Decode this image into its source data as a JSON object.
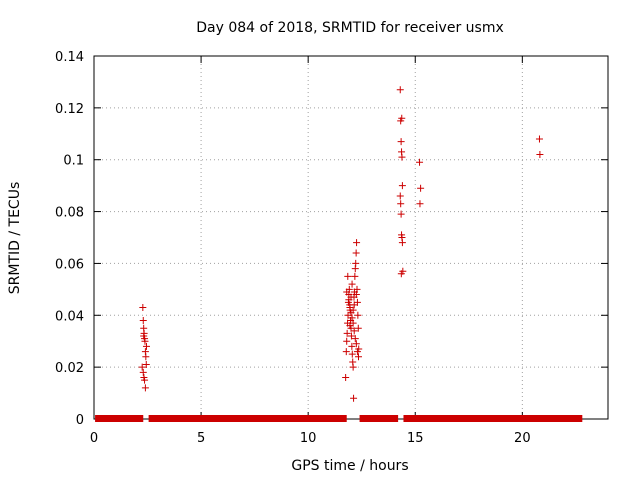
{
  "chart_data": {
    "type": "scatter",
    "title": "Day 084 of 2018, SRMTID for receiver usmx",
    "xlabel": "GPS time / hours",
    "ylabel": "SRMTID / TECUs",
    "xlim": [
      0,
      24
    ],
    "ylim": [
      0,
      0.14
    ],
    "xticks": [
      0,
      5,
      10,
      15,
      20
    ],
    "xtick_labels": [
      "0",
      "5",
      "10",
      "15",
      "20"
    ],
    "yticks": [
      0,
      0.02,
      0.04,
      0.06,
      0.08,
      0.1,
      0.12,
      0.14
    ],
    "ytick_labels": [
      "0",
      "0.02",
      "0.04",
      "0.06",
      "0.08",
      "0.1",
      "0.12",
      "0.14"
    ],
    "grid": true,
    "marker_color": "#cc0000",
    "marker": "+",
    "baseline_segments": [
      [
        0.05,
        2.3
      ],
      [
        2.55,
        11.8
      ],
      [
        12.4,
        14.2
      ],
      [
        14.45,
        22.8
      ]
    ],
    "series": [
      {
        "name": "SRMTID",
        "x": [
          2.28,
          2.3,
          2.32,
          2.34,
          2.36,
          2.38,
          2.4,
          2.42,
          2.44,
          2.25,
          2.3,
          2.33,
          2.36,
          2.4,
          2.45,
          2.32,
          11.75,
          11.78,
          11.8,
          11.82,
          11.84,
          11.86,
          11.88,
          11.9,
          11.92,
          11.94,
          11.96,
          11.98,
          12.0,
          12.02,
          12.04,
          12.06,
          12.08,
          12.1,
          12.12,
          12.14,
          12.16,
          12.18,
          12.2,
          12.22,
          12.24,
          12.26,
          12.28,
          12.3,
          12.32,
          12.34,
          12.36,
          11.85,
          11.9,
          11.95,
          12.0,
          12.05,
          12.1,
          12.15,
          12.2,
          12.25,
          12.3,
          12.35,
          11.8,
          12.0,
          12.15,
          12.05,
          11.95,
          12.25,
          12.1,
          14.3,
          14.32,
          14.34,
          14.36,
          14.38,
          14.4,
          14.3,
          14.32,
          14.34,
          14.36,
          14.38,
          14.4,
          14.42,
          14.35,
          14.37,
          15.2,
          15.25,
          15.22,
          20.8,
          20.82
        ],
        "y": [
          0.043,
          0.038,
          0.035,
          0.033,
          0.031,
          0.03,
          0.026,
          0.024,
          0.021,
          0.02,
          0.018,
          0.016,
          0.015,
          0.012,
          0.028,
          0.032,
          0.016,
          0.026,
          0.03,
          0.033,
          0.037,
          0.04,
          0.045,
          0.048,
          0.05,
          0.044,
          0.042,
          0.038,
          0.035,
          0.032,
          0.028,
          0.025,
          0.022,
          0.02,
          0.008,
          0.047,
          0.049,
          0.055,
          0.058,
          0.06,
          0.064,
          0.068,
          0.05,
          0.045,
          0.04,
          0.035,
          0.027,
          0.055,
          0.046,
          0.043,
          0.041,
          0.039,
          0.037,
          0.034,
          0.031,
          0.029,
          0.026,
          0.024,
          0.049,
          0.047,
          0.044,
          0.052,
          0.036,
          0.048,
          0.042,
          0.127,
          0.115,
          0.107,
          0.103,
          0.101,
          0.09,
          0.086,
          0.083,
          0.079,
          0.071,
          0.07,
          0.068,
          0.057,
          0.056,
          0.116,
          0.099,
          0.089,
          0.083,
          0.108,
          0.102
        ]
      }
    ]
  }
}
